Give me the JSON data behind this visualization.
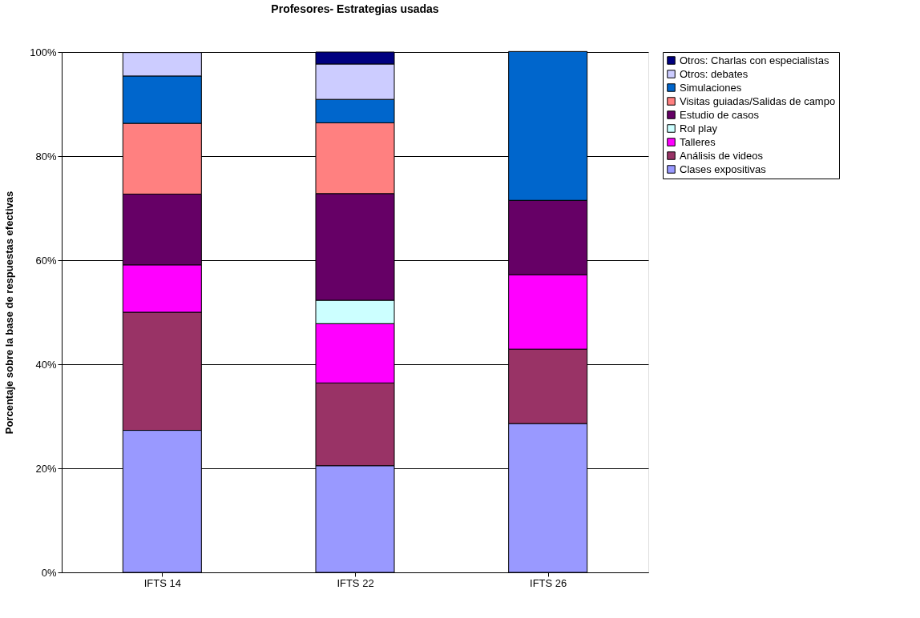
{
  "chart_data": {
    "type": "bar",
    "stacked": true,
    "title": "Profesores- Estrategias usadas",
    "ylabel": "Porcentaje sobre la base de respuestas efectivas",
    "categories": [
      "IFTS 14",
      "IFTS 22",
      "IFTS 26"
    ],
    "series": [
      {
        "name": "Clases expositivas",
        "color": "#9999ff",
        "values": [
          27.3,
          20.5,
          28.6
        ]
      },
      {
        "name": "Análisis de videos",
        "color": "#993366",
        "values": [
          22.7,
          15.9,
          14.3
        ]
      },
      {
        "name": "Talleres",
        "color": "#ff00ff",
        "values": [
          9.1,
          11.4,
          14.3
        ]
      },
      {
        "name": "Rol play",
        "color": "#ccffff",
        "values": [
          null,
          4.5,
          null
        ]
      },
      {
        "name": "Estudio de casos",
        "color": "#660066",
        "values": [
          13.6,
          20.5,
          14.3
        ]
      },
      {
        "name": "Visitas guiadas/Salidas de campo",
        "color": "#ff8080",
        "values": [
          13.6,
          13.6,
          null
        ]
      },
      {
        "name": "Simulaciones",
        "color": "#0066cc",
        "values": [
          9.1,
          4.5,
          28.6
        ]
      },
      {
        "name": "Otros: debates",
        "color": "#ccccff",
        "values": [
          4.5,
          6.8,
          null
        ]
      },
      {
        "name": "Otros: Charlas con especialistas",
        "color": "#000080",
        "values": [
          null,
          2.3,
          null
        ]
      }
    ],
    "ylim": [
      0,
      100
    ],
    "yticks": [
      {
        "value": 0,
        "label": "0%"
      },
      {
        "value": 20,
        "label": "20%"
      },
      {
        "value": 40,
        "label": "40%"
      },
      {
        "value": 60,
        "label": "60%"
      },
      {
        "value": 80,
        "label": "80%"
      },
      {
        "value": 100,
        "label": "100%"
      }
    ],
    "grid": "y",
    "legend": "right"
  }
}
